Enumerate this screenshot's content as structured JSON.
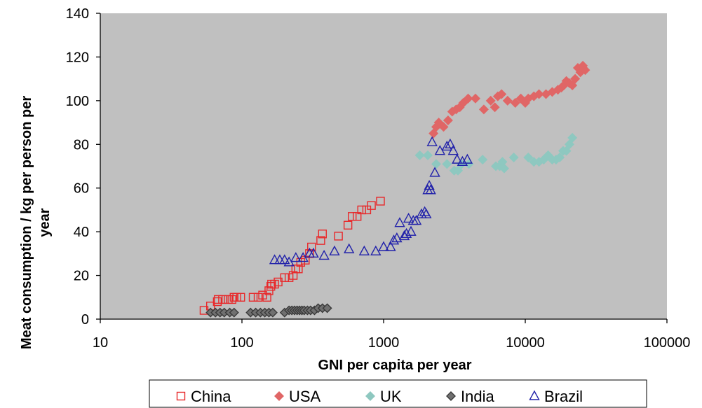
{
  "chart_data": {
    "type": "scatter",
    "title": "",
    "xlabel": "GNI per capita per year",
    "ylabel_line1": "Meat consumption / kg per person per",
    "ylabel_line2": "year",
    "x_scale": "log",
    "xlim": [
      10,
      100000
    ],
    "ylim": [
      0,
      140
    ],
    "x_ticks": [
      10,
      100,
      1000,
      10000,
      100000
    ],
    "x_tick_labels": [
      "10",
      "100",
      "1000",
      "10000",
      "100000"
    ],
    "y_ticks": [
      0,
      20,
      40,
      60,
      80,
      100,
      120,
      140
    ],
    "y_tick_labels": [
      "0",
      "20",
      "40",
      "60",
      "80",
      "100",
      "120",
      "140"
    ],
    "grid": false,
    "plot_background": "#c0c0c0",
    "legend_position": "bottom",
    "series": [
      {
        "name": "China",
        "marker": "square",
        "color": "#e8282a",
        "fill": "none",
        "points": [
          [
            54,
            4
          ],
          [
            60,
            6
          ],
          [
            67,
            8
          ],
          [
            68,
            9
          ],
          [
            73,
            9
          ],
          [
            80,
            9
          ],
          [
            85,
            9
          ],
          [
            88,
            10
          ],
          [
            92,
            10
          ],
          [
            98,
            10
          ],
          [
            120,
            10
          ],
          [
            130,
            10
          ],
          [
            140,
            11
          ],
          [
            150,
            10
          ],
          [
            155,
            13
          ],
          [
            160,
            15
          ],
          [
            162,
            16
          ],
          [
            170,
            16
          ],
          [
            180,
            17
          ],
          [
            200,
            19
          ],
          [
            215,
            19
          ],
          [
            230,
            20
          ],
          [
            240,
            23
          ],
          [
            250,
            23
          ],
          [
            260,
            26
          ],
          [
            280,
            27
          ],
          [
            300,
            30
          ],
          [
            310,
            33
          ],
          [
            360,
            36
          ],
          [
            370,
            39
          ],
          [
            480,
            38
          ],
          [
            560,
            43
          ],
          [
            600,
            47
          ],
          [
            650,
            47
          ],
          [
            700,
            50
          ],
          [
            760,
            50
          ],
          [
            820,
            52
          ],
          [
            950,
            54
          ]
        ]
      },
      {
        "name": "USA",
        "marker": "diamond",
        "color": "#e06666",
        "fill": "#e06666",
        "points": [
          [
            2250,
            85
          ],
          [
            2350,
            88
          ],
          [
            2450,
            90
          ],
          [
            2650,
            88
          ],
          [
            2850,
            91
          ],
          [
            3050,
            95
          ],
          [
            3250,
            96
          ],
          [
            3450,
            97
          ],
          [
            3650,
            99
          ],
          [
            3950,
            101
          ],
          [
            4450,
            101
          ],
          [
            5100,
            96
          ],
          [
            5700,
            100
          ],
          [
            6100,
            97
          ],
          [
            6400,
            102
          ],
          [
            6800,
            103
          ],
          [
            7500,
            100
          ],
          [
            8500,
            99
          ],
          [
            9300,
            101
          ],
          [
            10000,
            99
          ],
          [
            10500,
            101
          ],
          [
            11500,
            102
          ],
          [
            12500,
            103
          ],
          [
            14000,
            103
          ],
          [
            15500,
            104
          ],
          [
            17000,
            105
          ],
          [
            18000,
            106
          ],
          [
            18700,
            107
          ],
          [
            19500,
            109
          ],
          [
            20500,
            108
          ],
          [
            21500,
            107
          ],
          [
            22500,
            110
          ],
          [
            23500,
            115
          ],
          [
            24500,
            113
          ],
          [
            25500,
            116
          ],
          [
            26500,
            114
          ]
        ]
      },
      {
        "name": "UK",
        "marker": "diamond",
        "color": "#8ec8c0",
        "fill": "#8ec8c0",
        "points": [
          [
            1800,
            75
          ],
          [
            2050,
            75
          ],
          [
            2350,
            71
          ],
          [
            2800,
            71
          ],
          [
            3150,
            68
          ],
          [
            3350,
            68
          ],
          [
            3550,
            71
          ],
          [
            4000,
            71
          ],
          [
            5000,
            73
          ],
          [
            6200,
            70
          ],
          [
            6600,
            70
          ],
          [
            6900,
            72
          ],
          [
            7100,
            69
          ],
          [
            8300,
            74
          ],
          [
            10500,
            74
          ],
          [
            11500,
            72
          ],
          [
            12500,
            72
          ],
          [
            13500,
            73
          ],
          [
            14500,
            75
          ],
          [
            15500,
            73
          ],
          [
            16500,
            73
          ],
          [
            17500,
            74
          ],
          [
            18500,
            77
          ],
          [
            19500,
            77
          ],
          [
            20500,
            80
          ],
          [
            21500,
            83
          ]
        ]
      },
      {
        "name": "India",
        "marker": "diamond",
        "color": "#3a3a3a",
        "fill": "#707070",
        "points": [
          [
            60,
            3
          ],
          [
            65,
            3
          ],
          [
            70,
            3
          ],
          [
            75,
            3
          ],
          [
            82,
            3
          ],
          [
            88,
            3
          ],
          [
            115,
            3
          ],
          [
            125,
            3
          ],
          [
            135,
            3
          ],
          [
            145,
            3
          ],
          [
            155,
            3
          ],
          [
            165,
            3
          ],
          [
            200,
            3
          ],
          [
            215,
            4
          ],
          [
            225,
            4
          ],
          [
            235,
            4
          ],
          [
            245,
            4
          ],
          [
            255,
            4
          ],
          [
            265,
            4
          ],
          [
            275,
            4
          ],
          [
            290,
            4
          ],
          [
            305,
            4
          ],
          [
            325,
            4
          ],
          [
            345,
            5
          ],
          [
            370,
            5
          ],
          [
            400,
            5
          ]
        ]
      },
      {
        "name": "Brazil",
        "marker": "triangle",
        "color": "#2222aa",
        "fill": "none",
        "points": [
          [
            170,
            27
          ],
          [
            185,
            27
          ],
          [
            200,
            27
          ],
          [
            215,
            26
          ],
          [
            240,
            28
          ],
          [
            270,
            28
          ],
          [
            300,
            30
          ],
          [
            320,
            30
          ],
          [
            380,
            29
          ],
          [
            450,
            31
          ],
          [
            570,
            32
          ],
          [
            730,
            31
          ],
          [
            880,
            31
          ],
          [
            1000,
            33
          ],
          [
            1120,
            33
          ],
          [
            1180,
            36
          ],
          [
            1240,
            37
          ],
          [
            1300,
            44
          ],
          [
            1400,
            38
          ],
          [
            1450,
            39
          ],
          [
            1500,
            46
          ],
          [
            1560,
            40
          ],
          [
            1620,
            45
          ],
          [
            1700,
            45
          ],
          [
            1850,
            48
          ],
          [
            1950,
            49
          ],
          [
            2000,
            48
          ],
          [
            2050,
            59
          ],
          [
            2100,
            61
          ],
          [
            2150,
            59
          ],
          [
            2200,
            81
          ],
          [
            2300,
            67
          ],
          [
            2500,
            77
          ],
          [
            2800,
            79
          ],
          [
            2950,
            80
          ],
          [
            3100,
            77
          ],
          [
            3300,
            73
          ],
          [
            3600,
            72
          ],
          [
            3900,
            73
          ]
        ]
      }
    ]
  }
}
